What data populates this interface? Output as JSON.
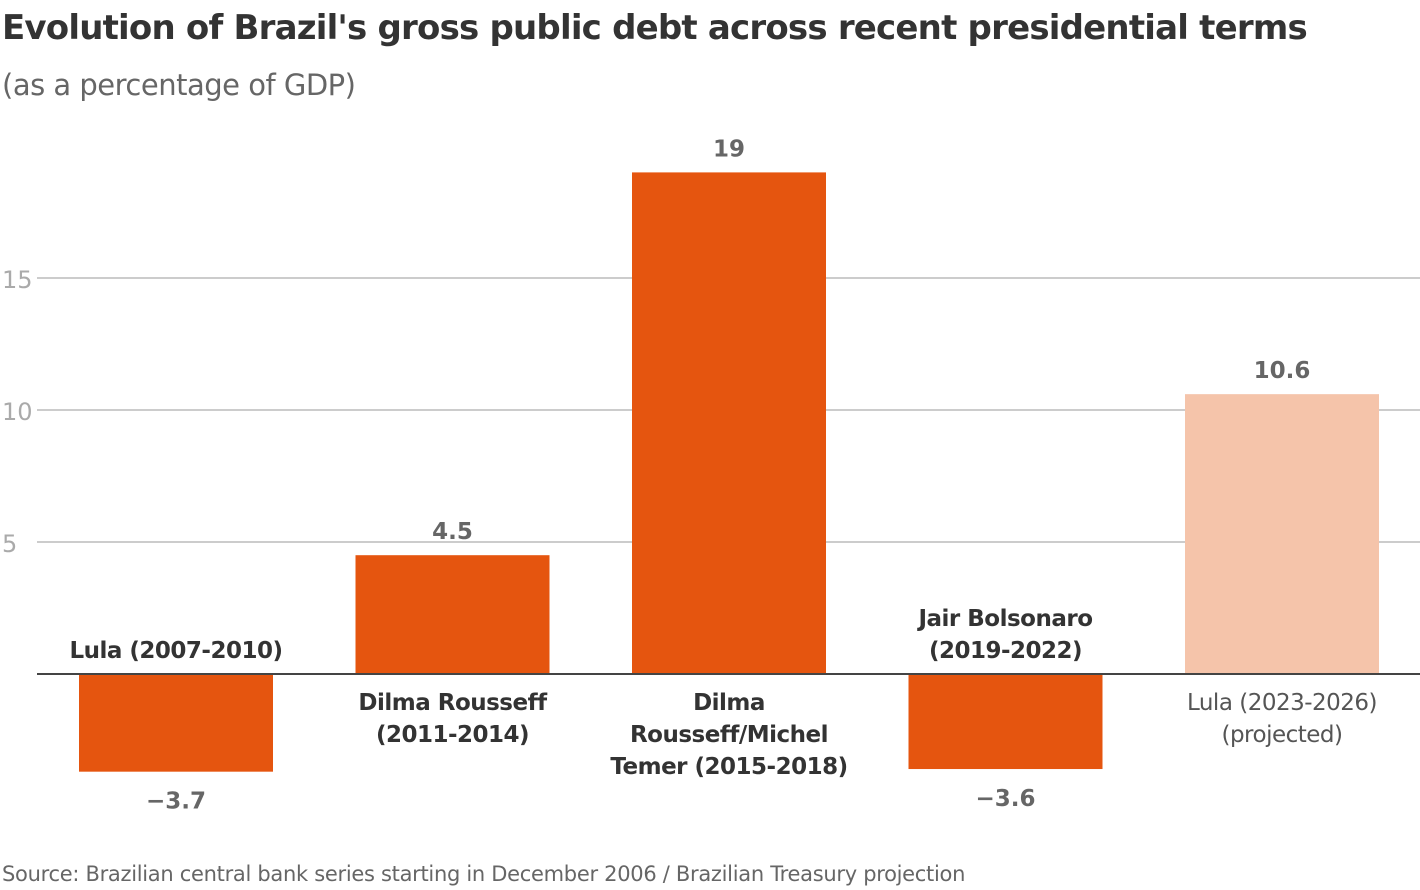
{
  "chart_data": {
    "type": "bar",
    "title": "Evolution of Brazil's gross public debt across recent presidential terms",
    "subtitle": "(as a percentage of GDP)",
    "source": "Source: Brazilian central bank series starting in December 2006 / Brazilian Treasury projection",
    "categories": [
      [
        "Lula (2007-2010)"
      ],
      [
        "Dilma Rousseff",
        "(2011-2014)"
      ],
      [
        "Dilma",
        "Rousseff/Michel",
        "Temer (2015-2018)"
      ],
      [
        "Jair Bolsonaro",
        "(2019-2022)"
      ],
      [
        "Lula (2023-2026)",
        "(projected)"
      ]
    ],
    "values": [
      -3.7,
      4.5,
      19,
      -3.6,
      10.6
    ],
    "value_labels": [
      "−3.7",
      "4.5",
      "19",
      "−3.6",
      "10.6"
    ],
    "projected": [
      false,
      false,
      false,
      false,
      true
    ],
    "ylim": [
      -3.7,
      19
    ],
    "yticks": [
      5,
      10,
      15
    ],
    "grid": true,
    "colors": {
      "actual": "#E5550F",
      "projected": "#F5C4AA",
      "grid": "#cccccc",
      "axis": "#444444"
    }
  }
}
